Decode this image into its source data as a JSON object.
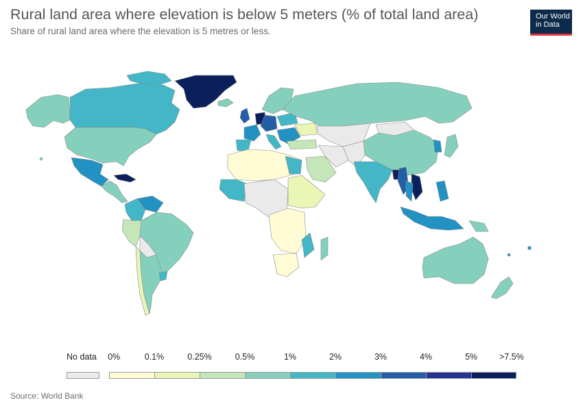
{
  "header": {
    "title": "Rural land area where elevation is below 5 meters (% of total land area)",
    "subtitle": "Share of rural land area where the elevation is 5 metres or less."
  },
  "logo": {
    "line1": "Our World",
    "line2": "in Data"
  },
  "legend": {
    "no_data_label": "No data",
    "no_data_color": "#eaeaea",
    "bins": [
      {
        "from": "0%",
        "to": "0.1%",
        "color": "#fffcd5"
      },
      {
        "from": "0.1%",
        "to": "0.25%",
        "color": "#e9f6b5"
      },
      {
        "from": "0.25%",
        "to": "0.5%",
        "color": "#c5e6b8"
      },
      {
        "from": "0.5%",
        "to": "1%",
        "color": "#85d0bd"
      },
      {
        "from": "1%",
        "to": "2%",
        "color": "#43b6c7"
      },
      {
        "from": "2%",
        "to": "3%",
        "color": "#2292c2"
      },
      {
        "from": "3%",
        "to": "4%",
        "color": "#245ea8"
      },
      {
        "from": "4%",
        "to": "5%",
        "color": "#253494"
      },
      {
        "from": "5%",
        "to": ">7.5%",
        "color": "#0a1f5c"
      }
    ],
    "tick_labels": [
      "0%",
      "0.1%",
      "0.25%",
      "0.5%",
      "1%",
      "2%",
      "3%",
      "4%",
      "5%",
      ">7.5%"
    ]
  },
  "source": "Source: World Bank",
  "colors": {
    "ocean": "#ffffff",
    "border": "#8a8a8a"
  }
}
